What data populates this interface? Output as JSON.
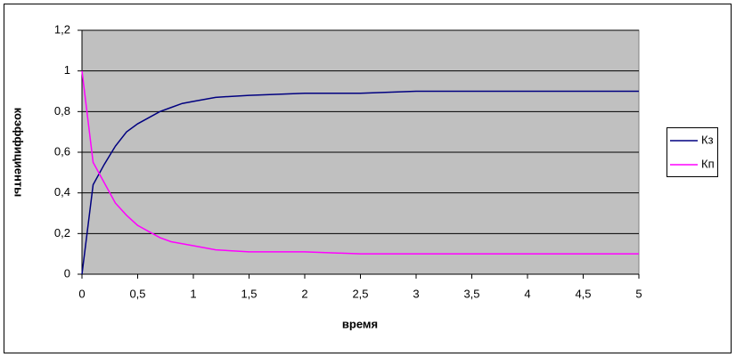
{
  "chart_data": {
    "type": "line",
    "x_label": "время",
    "y_label": "коэффициенты",
    "x": [
      0,
      0.1,
      0.2,
      0.3,
      0.4,
      0.5,
      0.6,
      0.7,
      0.8,
      0.9,
      1,
      1.2,
      1.5,
      2,
      2.5,
      3,
      5
    ],
    "series": [
      {
        "name": "Кз",
        "color": "#000080",
        "values": [
          0,
          0.44,
          0.54,
          0.63,
          0.7,
          0.74,
          0.77,
          0.8,
          0.82,
          0.84,
          0.85,
          0.87,
          0.88,
          0.89,
          0.89,
          0.9,
          0.9
        ]
      },
      {
        "name": "Кп",
        "color": "#ff00ff",
        "values": [
          1,
          0.55,
          0.45,
          0.35,
          0.29,
          0.24,
          0.21,
          0.18,
          0.16,
          0.15,
          0.14,
          0.12,
          0.11,
          0.11,
          0.1,
          0.1,
          0.1
        ]
      }
    ],
    "xlim": [
      0,
      5
    ],
    "xticks": [
      0,
      {
        "value": 0.5,
        "label": "0,5"
      },
      1,
      {
        "value": 1.5,
        "label": "1,5"
      },
      2,
      {
        "value": 2.5,
        "label": "2,5"
      },
      3,
      {
        "value": 3.5,
        "label": "3,5"
      },
      4,
      {
        "value": 4.5,
        "label": "4,5"
      },
      5
    ],
    "ylim": [
      0,
      1.2
    ],
    "yticks": [
      0,
      {
        "value": 0.2,
        "label": "0,2"
      },
      {
        "value": 0.4,
        "label": "0,4"
      },
      {
        "value": 0.6,
        "label": "0,6"
      },
      {
        "value": 0.8,
        "label": "0,8"
      },
      1,
      {
        "value": 1.2,
        "label": "1,2"
      }
    ],
    "grid": true,
    "plot_background": "#c0c0c0",
    "legend": "right"
  }
}
